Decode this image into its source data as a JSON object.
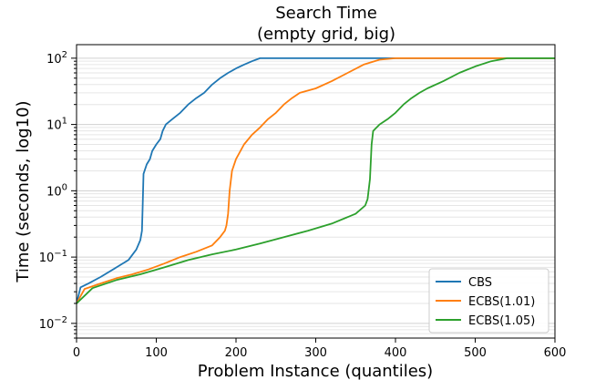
{
  "chart_data": {
    "type": "line",
    "title": "Search Time",
    "subtitle": "(empty grid, big)",
    "xlabel": "Problem Instance (quantiles)",
    "ylabel": "Time (seconds, log10)",
    "xlim": [
      0,
      600
    ],
    "ylim": [
      0.006,
      160
    ],
    "yscale": "log",
    "grid": "horizontal minor and major lines",
    "legend_position": "lower-right",
    "x_ticks": [
      "0",
      "100",
      "200",
      "300",
      "400",
      "500",
      "600"
    ],
    "y_ticks": [
      {
        "value": 0.01,
        "base": "10",
        "exp": "−2"
      },
      {
        "value": 0.1,
        "base": "10",
        "exp": "−1"
      },
      {
        "value": 1,
        "base": "10",
        "exp": "0"
      },
      {
        "value": 10,
        "base": "10",
        "exp": "1"
      },
      {
        "value": 100,
        "base": "10",
        "exp": "2"
      }
    ],
    "series": [
      {
        "name": "CBS",
        "color": "#1f77b4",
        "points": [
          [
            0,
            0.02
          ],
          [
            5,
            0.035
          ],
          [
            15,
            0.04
          ],
          [
            30,
            0.05
          ],
          [
            50,
            0.07
          ],
          [
            65,
            0.09
          ],
          [
            75,
            0.13
          ],
          [
            80,
            0.18
          ],
          [
            82,
            0.25
          ],
          [
            83,
            0.6
          ],
          [
            84,
            1.8
          ],
          [
            88,
            2.5
          ],
          [
            92,
            3
          ],
          [
            95,
            4
          ],
          [
            100,
            5
          ],
          [
            105,
            6
          ],
          [
            108,
            8
          ],
          [
            112,
            10
          ],
          [
            120,
            12
          ],
          [
            130,
            15
          ],
          [
            140,
            20
          ],
          [
            150,
            25
          ],
          [
            160,
            30
          ],
          [
            170,
            40
          ],
          [
            180,
            50
          ],
          [
            190,
            60
          ],
          [
            200,
            70
          ],
          [
            210,
            80
          ],
          [
            220,
            90
          ],
          [
            230,
            100
          ],
          [
            600,
            100
          ]
        ]
      },
      {
        "name": "ECBS(1.01)",
        "color": "#ff7f0e",
        "points": [
          [
            0,
            0.02
          ],
          [
            10,
            0.033
          ],
          [
            30,
            0.04
          ],
          [
            50,
            0.048
          ],
          [
            70,
            0.055
          ],
          [
            90,
            0.065
          ],
          [
            110,
            0.08
          ],
          [
            130,
            0.1
          ],
          [
            150,
            0.12
          ],
          [
            170,
            0.15
          ],
          [
            180,
            0.2
          ],
          [
            186,
            0.25
          ],
          [
            188,
            0.3
          ],
          [
            190,
            0.45
          ],
          [
            192,
            1.0
          ],
          [
            195,
            2.0
          ],
          [
            200,
            3
          ],
          [
            210,
            5
          ],
          [
            220,
            7
          ],
          [
            230,
            9
          ],
          [
            240,
            12
          ],
          [
            250,
            15
          ],
          [
            260,
            20
          ],
          [
            270,
            25
          ],
          [
            280,
            30
          ],
          [
            300,
            35
          ],
          [
            320,
            45
          ],
          [
            340,
            60
          ],
          [
            360,
            80
          ],
          [
            380,
            95
          ],
          [
            400,
            100
          ],
          [
            600,
            100
          ]
        ]
      },
      {
        "name": "ECBS(1.05)",
        "color": "#2ca02c",
        "points": [
          [
            0,
            0.02
          ],
          [
            20,
            0.034
          ],
          [
            50,
            0.045
          ],
          [
            80,
            0.055
          ],
          [
            110,
            0.07
          ],
          [
            140,
            0.09
          ],
          [
            170,
            0.11
          ],
          [
            200,
            0.13
          ],
          [
            230,
            0.16
          ],
          [
            260,
            0.2
          ],
          [
            290,
            0.25
          ],
          [
            320,
            0.32
          ],
          [
            350,
            0.45
          ],
          [
            362,
            0.6
          ],
          [
            365,
            0.75
          ],
          [
            368,
            1.5
          ],
          [
            370,
            5
          ],
          [
            372,
            8
          ],
          [
            380,
            10
          ],
          [
            390,
            12
          ],
          [
            400,
            15
          ],
          [
            410,
            20
          ],
          [
            420,
            25
          ],
          [
            430,
            30
          ],
          [
            440,
            35
          ],
          [
            460,
            45
          ],
          [
            480,
            60
          ],
          [
            500,
            75
          ],
          [
            520,
            90
          ],
          [
            540,
            100
          ],
          [
            600,
            100
          ]
        ]
      }
    ]
  }
}
